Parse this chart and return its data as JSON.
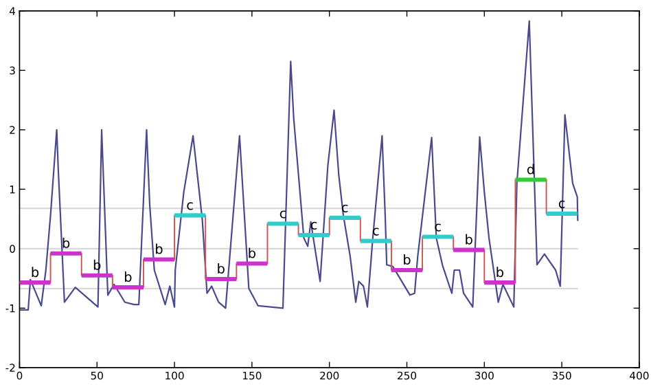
{
  "chart_data": {
    "type": "line",
    "xlim": [
      0,
      400
    ],
    "ylim": [
      -2,
      4
    ],
    "xticks": [
      0,
      50,
      100,
      150,
      200,
      250,
      300,
      350,
      400
    ],
    "yticks": [
      -2,
      -1,
      0,
      1,
      2,
      3,
      4
    ],
    "grid": false,
    "legend": false,
    "series": [
      {
        "color": "#d9d9d9",
        "x": [
          0,
          360
        ],
        "values": [
          0.68,
          0.68
        ]
      },
      {
        "color": "#d9d9d9",
        "x": [
          0,
          360
        ],
        "values": [
          0,
          0
        ]
      },
      {
        "color": "#d9d9d9",
        "x": [
          0,
          360
        ],
        "values": [
          -0.67,
          -0.67
        ]
      },
      {
        "color": "#4a4a8c",
        "x": [
          0,
          5.6,
          7,
          14,
          17,
          20,
          24,
          25,
          29,
          36,
          50.6,
          53,
          57,
          61,
          68,
          74,
          77,
          82,
          84,
          87,
          94,
          97,
          100,
          100.5,
          106,
          112,
          118,
          121,
          124,
          128.5,
          133,
          142,
          148,
          154,
          170,
          175,
          177,
          183.5,
          186,
          188,
          194,
          199,
          203,
          206,
          209,
          213.4,
          217,
          219,
          222,
          224.5,
          228,
          234,
          236,
          237,
          241,
          252,
          255,
          257,
          266,
          269,
          273,
          279,
          280.6,
          284,
          286.6,
          292.5,
          297,
          300,
          303,
          309,
          312,
          319,
          321,
          329,
          333,
          334,
          338.8,
          346,
          349,
          352,
          357,
          360,
          360.3
        ],
        "values": [
          -1.03,
          -1.03,
          -0.52,
          -0.96,
          -0.36,
          0.56,
          2.0,
          1.33,
          -0.9,
          -0.65,
          -0.98,
          2.0,
          -0.78,
          -0.6,
          -0.9,
          -0.94,
          -0.94,
          2.0,
          0.75,
          -0.36,
          -0.94,
          -0.63,
          -0.98,
          -0.36,
          0.95,
          1.9,
          0.48,
          -0.75,
          -0.63,
          -0.9,
          -1.0,
          1.9,
          -0.67,
          -0.96,
          -1.0,
          3.15,
          2.18,
          0.18,
          0.04,
          0.45,
          -0.55,
          1.4,
          2.33,
          1.25,
          0.56,
          -0.13,
          -0.9,
          -0.55,
          -0.63,
          -0.98,
          0.18,
          1.9,
          0.56,
          -0.27,
          -0.3,
          -0.78,
          -0.75,
          -0.13,
          1.87,
          0.18,
          -0.28,
          -0.75,
          -0.36,
          -0.36,
          -0.75,
          -0.98,
          1.88,
          0.95,
          0.18,
          -0.9,
          -0.6,
          -0.98,
          1.1,
          3.83,
          0.56,
          -0.27,
          -0.09,
          -0.36,
          -0.63,
          2.25,
          1.1,
          0.87,
          0.48
        ]
      },
      {
        "type": "step",
        "color": "#cc5555",
        "x": [
          0,
          20,
          40,
          60,
          80,
          100,
          120,
          140,
          160,
          180,
          200,
          220,
          240,
          260,
          280,
          300,
          320,
          340,
          360
        ],
        "values": [
          -0.57,
          -0.08,
          -0.45,
          -0.65,
          -0.18,
          0.56,
          -0.51,
          -0.25,
          0.42,
          0.23,
          0.52,
          0.13,
          -0.36,
          0.2,
          -0.02,
          -0.57,
          1.16,
          0.59,
          0.59
        ],
        "colors": [
          "#cc33cc",
          "#cc33cc",
          "#cc33cc",
          "#cc33cc",
          "#cc33cc",
          "#33cccc",
          "#cc33cc",
          "#cc33cc",
          "#33cccc",
          "#33cccc",
          "#33cccc",
          "#33cccc",
          "#cc33cc",
          "#33cccc",
          "#cc33cc",
          "#cc33cc",
          "#33cc33",
          "#33cccc",
          "#33cccc"
        ]
      }
    ],
    "annotations": [
      {
        "text": "b",
        "x": 10,
        "y": -0.57
      },
      {
        "text": "b",
        "x": 30,
        "y": -0.08
      },
      {
        "text": "b",
        "x": 50,
        "y": -0.45
      },
      {
        "text": "b",
        "x": 70,
        "y": -0.65
      },
      {
        "text": "b",
        "x": 90,
        "y": -0.18
      },
      {
        "text": "c",
        "x": 110,
        "y": 0.56
      },
      {
        "text": "b",
        "x": 130,
        "y": -0.51
      },
      {
        "text": "b",
        "x": 150,
        "y": -0.25
      },
      {
        "text": "c",
        "x": 170,
        "y": 0.42
      },
      {
        "text": "c",
        "x": 190,
        "y": 0.23
      },
      {
        "text": "c",
        "x": 210,
        "y": 0.52
      },
      {
        "text": "c",
        "x": 230,
        "y": 0.13
      },
      {
        "text": "b",
        "x": 250,
        "y": -0.36
      },
      {
        "text": "c",
        "x": 270,
        "y": 0.2
      },
      {
        "text": "b",
        "x": 290,
        "y": -0.02
      },
      {
        "text": "b",
        "x": 310,
        "y": -0.57
      },
      {
        "text": "d",
        "x": 330,
        "y": 1.16
      },
      {
        "text": "c",
        "x": 350,
        "y": 0.59
      }
    ]
  }
}
